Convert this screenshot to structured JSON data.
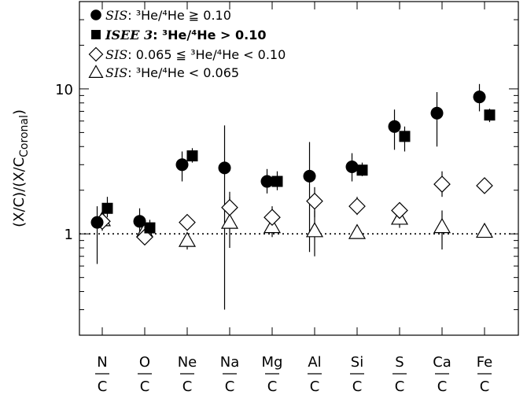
{
  "chart_data": {
    "type": "scatter",
    "ylabel_parts": {
      "main": "(X/C)/(X/C",
      "sub": "Coronal",
      "end": ")"
    },
    "yscale": "log",
    "ylim": [
      0.2,
      40
    ],
    "ytick_labels": [
      {
        "value": 1,
        "label": "1"
      },
      {
        "value": 10,
        "label": "10"
      }
    ],
    "reference_line": {
      "y": 1,
      "style": "dotted"
    },
    "categories": [
      {
        "num": "N",
        "den": "C"
      },
      {
        "num": "O",
        "den": "C"
      },
      {
        "num": "Ne",
        "den": "C"
      },
      {
        "num": "Na",
        "den": "C"
      },
      {
        "num": "Mg",
        "den": "C"
      },
      {
        "num": "Al",
        "den": "C"
      },
      {
        "num": "Si",
        "den": "C"
      },
      {
        "num": "S",
        "den": "C"
      },
      {
        "num": "Ca",
        "den": "C"
      },
      {
        "num": "Fe",
        "den": "C"
      }
    ],
    "series": [
      {
        "marker": "filled-circle",
        "legend": {
          "name": "SIS",
          "rest": ": ³He/⁴He ≧ 0.10"
        },
        "offset": -0.12,
        "points": [
          {
            "y": 1.2,
            "lo": 0.62,
            "hi": 1.55
          },
          {
            "y": 1.22,
            "lo": 1.0,
            "hi": 1.5
          },
          {
            "y": 3.0,
            "lo": 2.3,
            "hi": 3.7
          },
          {
            "y": 2.85,
            "lo": 0.3,
            "hi": 5.6
          },
          {
            "y": 2.3,
            "lo": 1.9,
            "hi": 2.8
          },
          {
            "y": 2.5,
            "lo": 0.75,
            "hi": 4.3
          },
          {
            "y": 2.9,
            "lo": 2.3,
            "hi": 3.6
          },
          {
            "y": 5.5,
            "lo": 3.8,
            "hi": 7.2
          },
          {
            "y": 6.8,
            "lo": 4.0,
            "hi": 9.5
          },
          {
            "y": 8.8,
            "lo": 7.0,
            "hi": 10.8
          }
        ]
      },
      {
        "marker": "filled-square",
        "legend": {
          "name": "ISEE 3",
          "rest": ": ³He/⁴He > 0.10"
        },
        "offset": 0.12,
        "points": [
          {
            "y": 1.5,
            "lo": 1.3,
            "hi": 1.8
          },
          {
            "y": 1.1,
            "lo": 1.0,
            "hi": 1.25
          },
          {
            "y": 3.45,
            "lo": 3.1,
            "hi": 3.9
          },
          null,
          {
            "y": 2.3,
            "lo": 2.0,
            "hi": 2.7
          },
          null,
          {
            "y": 2.75,
            "lo": 2.5,
            "hi": 3.1
          },
          {
            "y": 4.7,
            "lo": 3.7,
            "hi": 5.5
          },
          null,
          {
            "y": 6.6,
            "lo": 5.9,
            "hi": 7.3
          }
        ]
      },
      {
        "marker": "open-diamond",
        "legend": {
          "name": "SIS",
          "rest": ": 0.065 ≦ ³He/⁴He < 0.10"
        },
        "offset": 0,
        "points": [
          {
            "y": 1.22,
            "lo": 1.05,
            "hi": 1.4
          },
          {
            "y": 0.95,
            "lo": 0.85,
            "hi": 1.05
          },
          {
            "y": 1.2,
            "lo": 1.05,
            "hi": 1.35
          },
          {
            "y": 1.52,
            "lo": 1.15,
            "hi": 1.95
          },
          {
            "y": 1.3,
            "lo": 1.1,
            "hi": 1.55
          },
          {
            "y": 1.68,
            "lo": 1.3,
            "hi": 2.1
          },
          {
            "y": 1.55,
            "lo": 1.35,
            "hi": 1.8
          },
          {
            "y": 1.45,
            "lo": 1.3,
            "hi": 1.65
          },
          {
            "y": 2.2,
            "lo": 1.8,
            "hi": 2.7
          },
          {
            "y": 2.15,
            "lo": 1.95,
            "hi": 2.4
          }
        ]
      },
      {
        "marker": "open-triangle",
        "legend": {
          "name": "SIS",
          "rest": ": ³He/⁴He < 0.065"
        },
        "offset": 0,
        "points": [
          {
            "y": 1.25,
            "lo": 1.1,
            "hi": 1.4
          },
          {
            "y": 1.05,
            "lo": 0.9,
            "hi": 1.2
          },
          {
            "y": 0.9,
            "lo": 0.78,
            "hi": 1.0
          },
          {
            "y": 1.2,
            "lo": 0.8,
            "hi": 1.8
          },
          {
            "y": 1.12,
            "lo": 0.95,
            "hi": 1.3
          },
          {
            "y": 1.05,
            "lo": 0.7,
            "hi": 1.45
          },
          {
            "y": 1.02,
            "lo": 0.95,
            "hi": 1.1
          },
          {
            "y": 1.28,
            "lo": 1.1,
            "hi": 1.45
          },
          {
            "y": 1.12,
            "lo": 0.78,
            "hi": 1.45
          },
          {
            "y": 1.04,
            "lo": 0.95,
            "hi": 1.15
          }
        ]
      }
    ]
  }
}
